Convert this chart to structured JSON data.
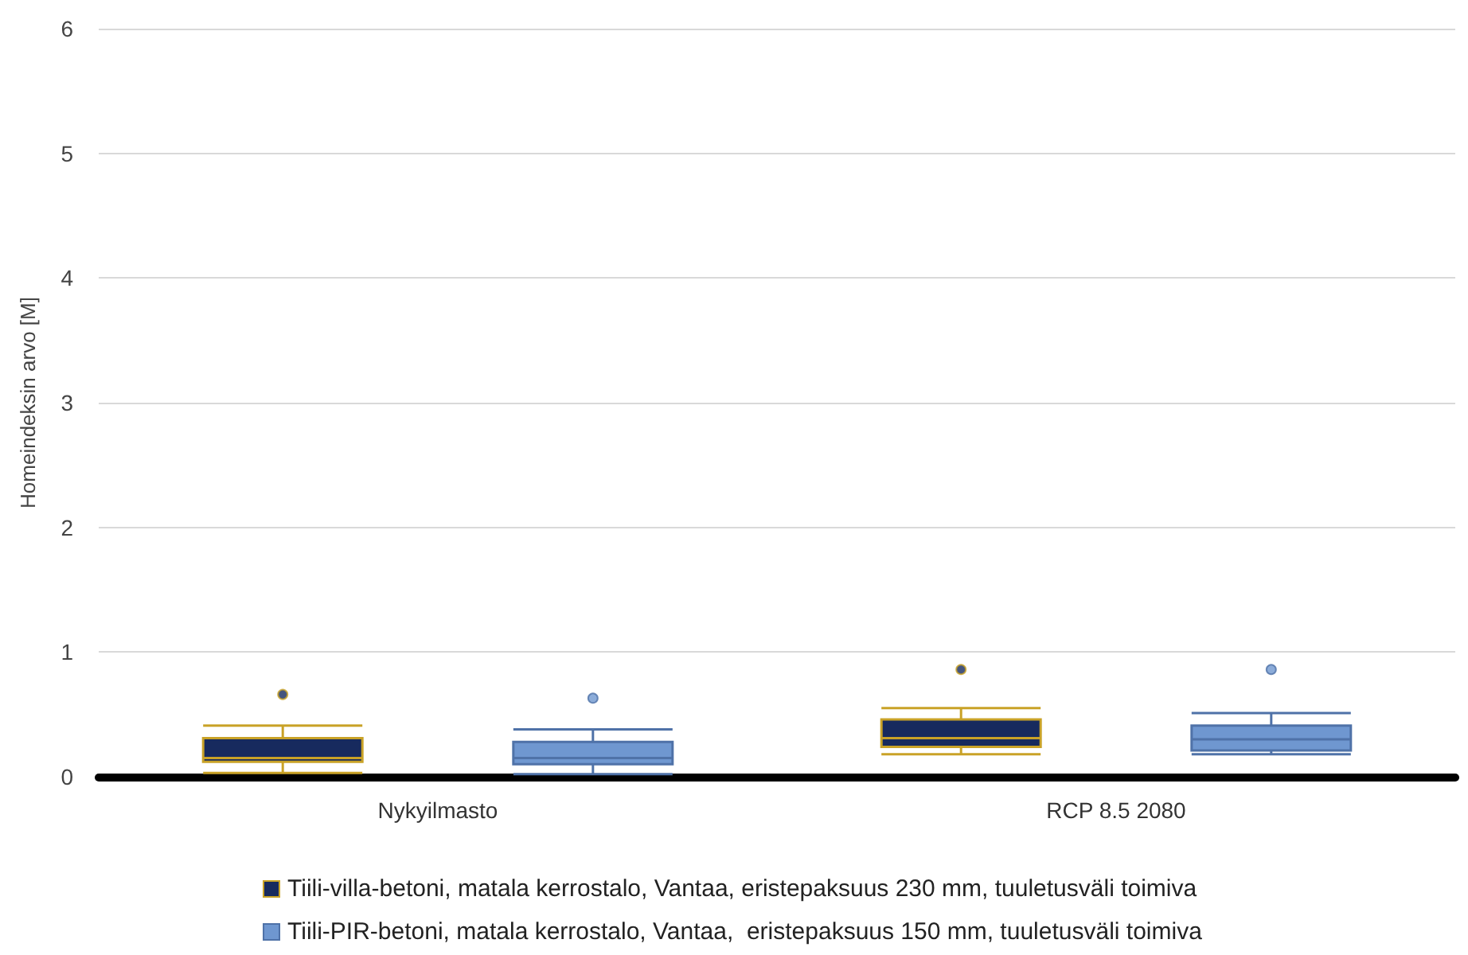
{
  "chart_data": {
    "type": "box",
    "ylabel": "Homeindeksin arvo [M]",
    "categories": [
      "Nykyilmasto",
      "RCP 8.5 2080"
    ],
    "series": [
      {
        "name": "Tiili-villa-betoni, matala kerrostalo, Vantaa, eristepaksuus 230 mm, tuuletusväli toimiva",
        "color": "#172a5e",
        "boxes": [
          {
            "low": 0.03,
            "q1": 0.12,
            "median": 0.15,
            "q3": 0.31,
            "high": 0.41,
            "outliers": [
              0.66
            ]
          },
          {
            "low": 0.18,
            "q1": 0.24,
            "median": 0.31,
            "q3": 0.46,
            "high": 0.55,
            "outliers": [
              0.86
            ]
          }
        ]
      },
      {
        "name": "Tiili-PIR-betoni, matala kerrostalo, Vantaa,  eristepaksuus 150 mm, tuuletusväli toimiva",
        "color": "#6f97d0",
        "boxes": [
          {
            "low": 0.02,
            "q1": 0.1,
            "median": 0.15,
            "q3": 0.28,
            "high": 0.38,
            "outliers": [
              0.63
            ]
          },
          {
            "low": 0.18,
            "q1": 0.21,
            "median": 0.3,
            "q3": 0.41,
            "high": 0.51,
            "outliers": [
              0.86
            ]
          }
        ]
      }
    ],
    "ylim": [
      0,
      6
    ],
    "yticks": [
      0,
      1,
      2,
      3,
      4,
      5,
      6
    ],
    "grid": "y",
    "legend": "bottom"
  }
}
